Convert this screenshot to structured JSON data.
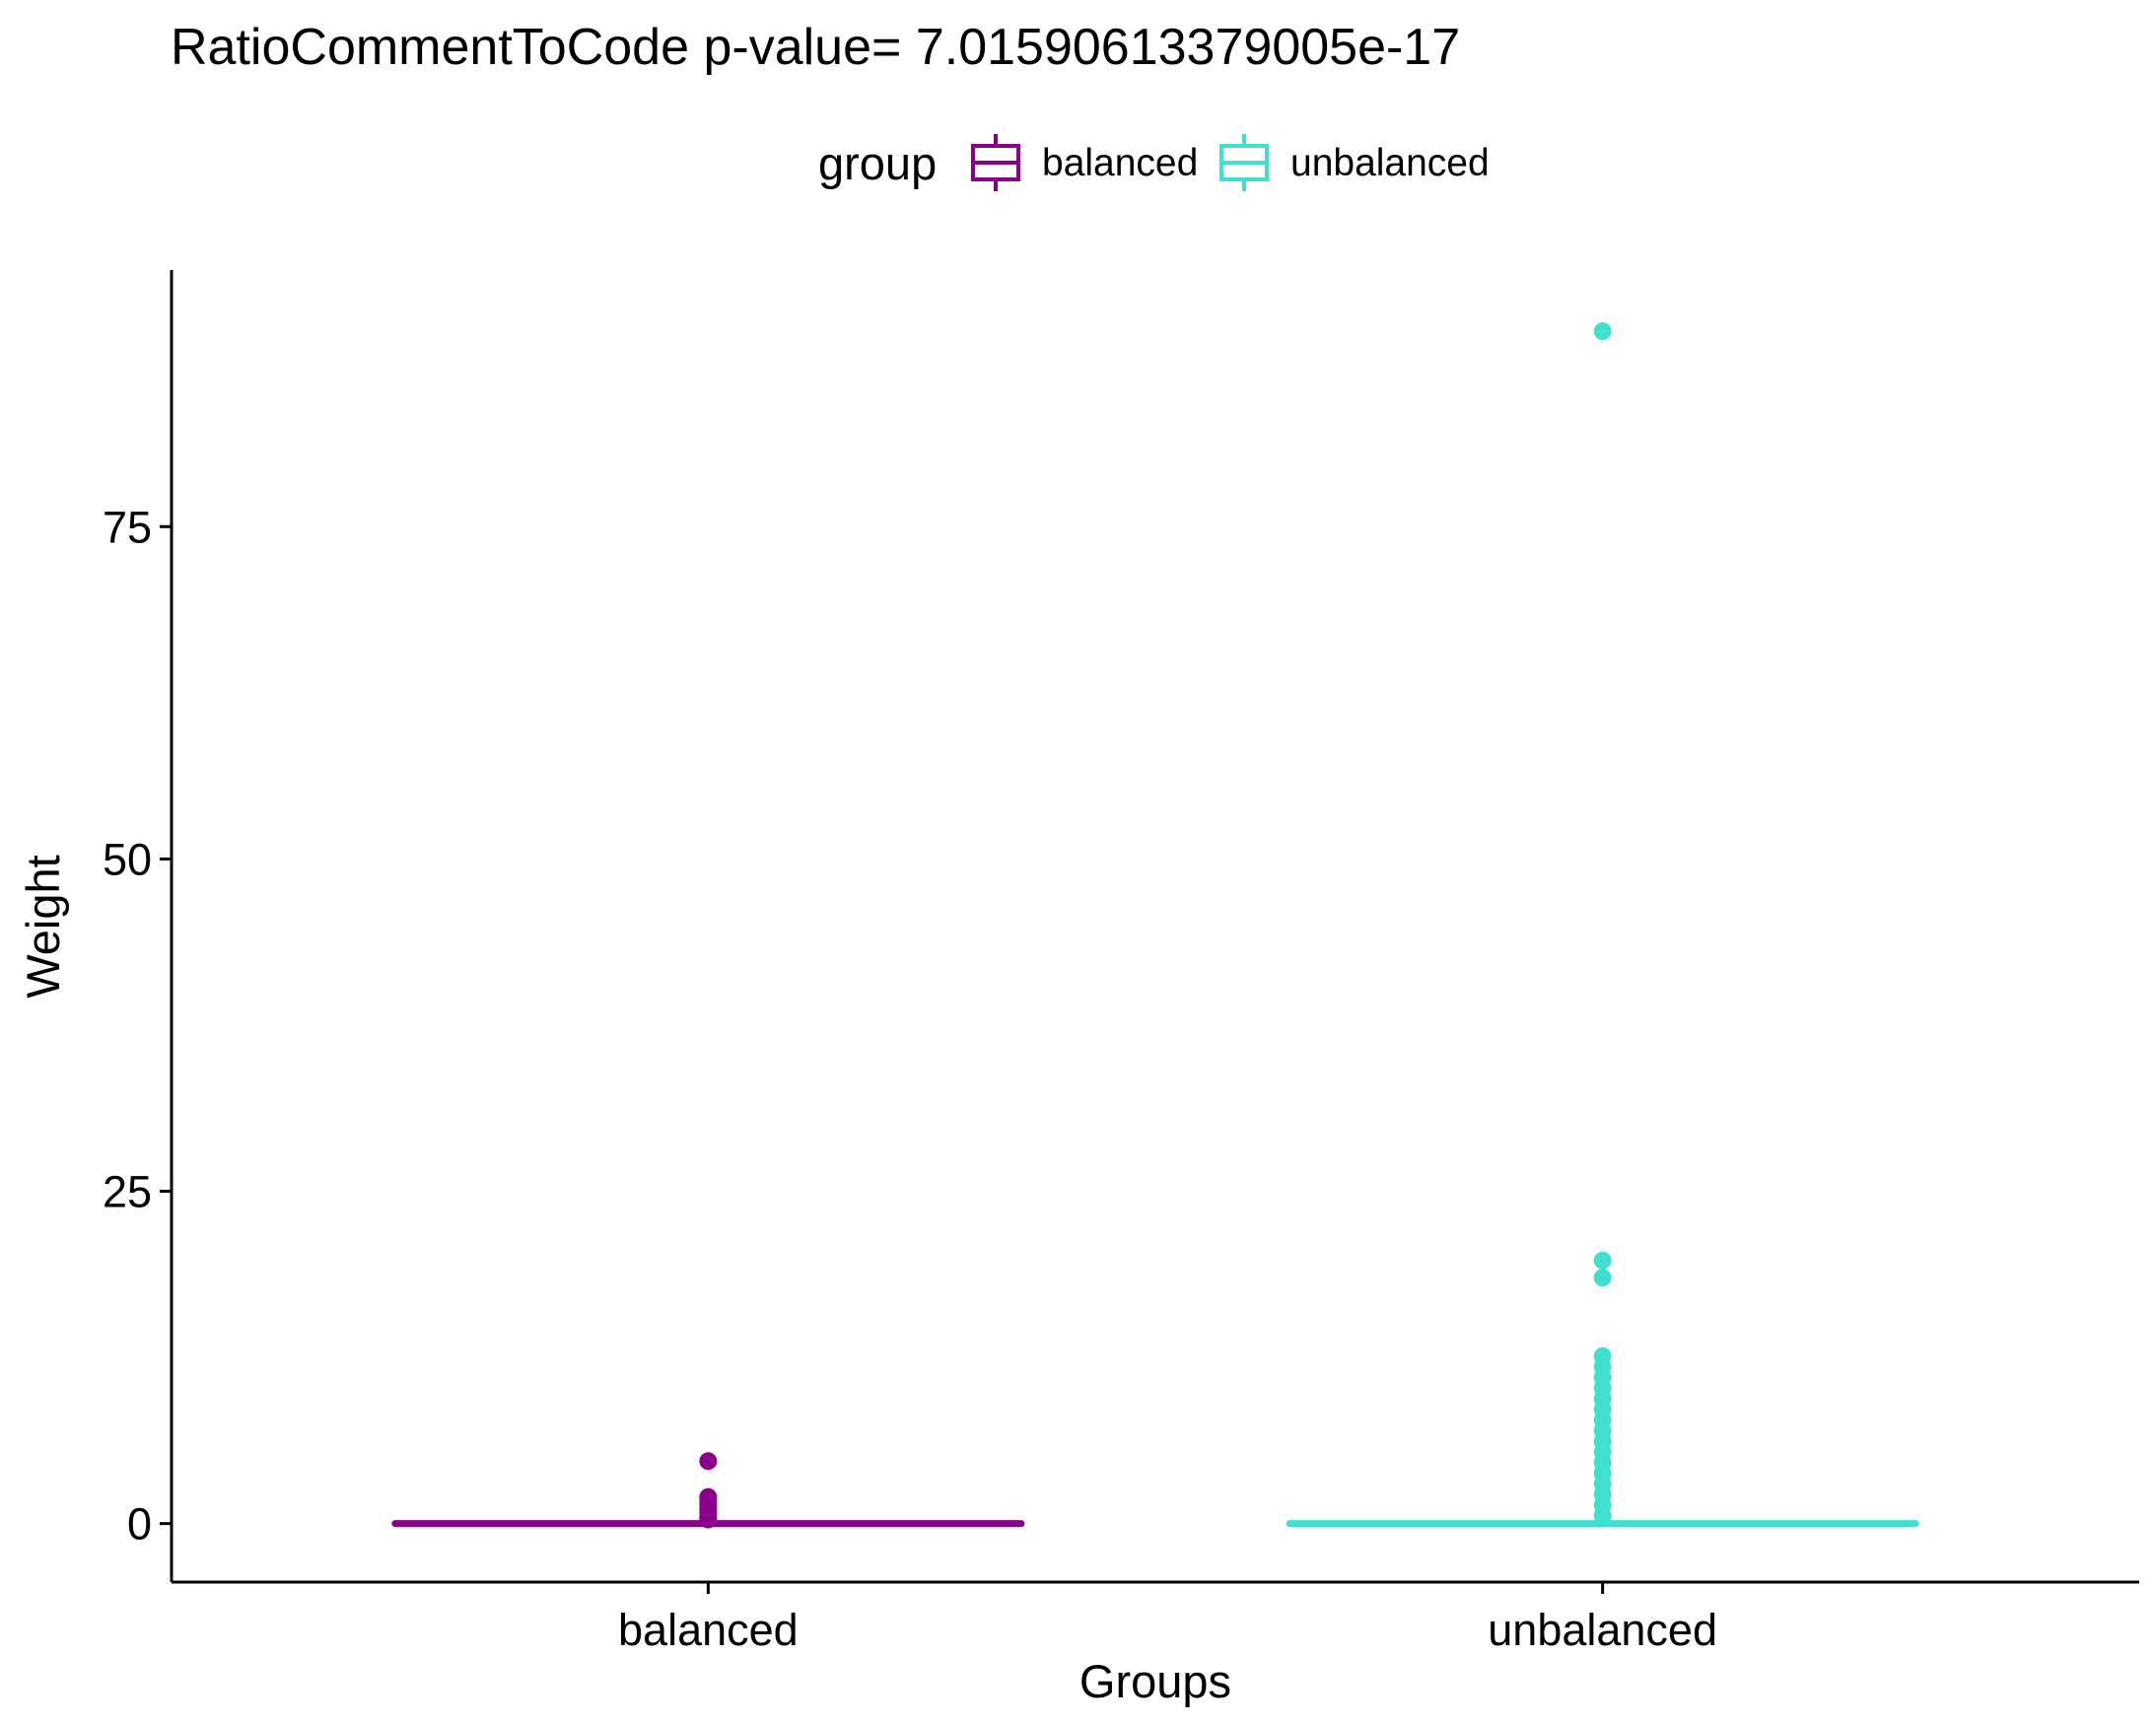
{
  "chart_data": {
    "type": "box",
    "title": "RatioCommentToCode  p-value= 7.01590613379005e-17",
    "xlabel": "Groups",
    "ylabel": "Weight",
    "ylim": [
      -4.4,
      94.3
    ],
    "yticks": [
      0,
      25,
      50,
      75
    ],
    "categories": [
      "balanced",
      "unbalanced"
    ],
    "legend": {
      "title": "group",
      "placement": "top",
      "entries": [
        "balanced",
        "unbalanced"
      ]
    },
    "grid": false,
    "series": [
      {
        "name": "balanced",
        "color": "#8B008B",
        "min": 0,
        "q1": 0,
        "median": 0,
        "q3": 0,
        "max": 0,
        "outliers": [
          4.7,
          2.0,
          1.7,
          1.4,
          1.1,
          0.8,
          0.5,
          0.3
        ]
      },
      {
        "name": "unbalanced",
        "color": "#40E0D0",
        "min": 0,
        "q1": 0,
        "median": 0,
        "q3": 0,
        "max": 0,
        "outliers": [
          89.7,
          19.8,
          18.5,
          12.6,
          11.8,
          11.0,
          10.2,
          9.4,
          8.6,
          7.8,
          7.0,
          6.2,
          5.4,
          4.6,
          3.8,
          3.0,
          2.2,
          1.4,
          0.6
        ]
      }
    ]
  }
}
